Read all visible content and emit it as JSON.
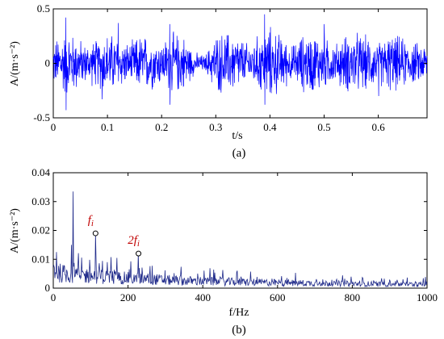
{
  "chart_data": [
    {
      "id": "a",
      "type": "line",
      "caption": "(a)",
      "xlabel": "t/s",
      "ylabel": "A/(m·s⁻²)",
      "xlim": [
        0,
        0.69
      ],
      "ylim": [
        -0.5,
        0.5
      ],
      "xticks": [
        0,
        0.1,
        0.2,
        0.3,
        0.4,
        0.5,
        0.6
      ],
      "xtick_labels": [
        "0",
        "0.1",
        "0.2",
        "0.3",
        "0.4",
        "0.5",
        "0.6"
      ],
      "yticks": [
        -0.5,
        0,
        0.5
      ],
      "ytick_labels": [
        "-0.5",
        "0",
        "0.5"
      ],
      "series_color": "#0000ff",
      "envelope": {
        "t": [
          0,
          0.02,
          0.04,
          0.06,
          0.08,
          0.1,
          0.12,
          0.14,
          0.16,
          0.18,
          0.2,
          0.22,
          0.24,
          0.26,
          0.28,
          0.3,
          0.32,
          0.34,
          0.36,
          0.38,
          0.4,
          0.42,
          0.44,
          0.46,
          0.48,
          0.5,
          0.52,
          0.54,
          0.56,
          0.58,
          0.6,
          0.62,
          0.64,
          0.66,
          0.69
        ],
        "amp": [
          0.22,
          0.35,
          0.3,
          0.2,
          0.25,
          0.32,
          0.28,
          0.2,
          0.3,
          0.28,
          0.22,
          0.32,
          0.3,
          0.12,
          0.08,
          0.3,
          0.33,
          0.3,
          0.2,
          0.3,
          0.38,
          0.3,
          0.18,
          0.3,
          0.32,
          0.28,
          0.2,
          0.3,
          0.32,
          0.28,
          0.22,
          0.3,
          0.28,
          0.22,
          0.2
        ]
      },
      "peaks": [
        {
          "t": 0.023,
          "v": 0.42
        },
        {
          "t": 0.023,
          "v": -0.43
        },
        {
          "t": 0.215,
          "v": 0.36
        },
        {
          "t": 0.215,
          "v": -0.38
        },
        {
          "t": 0.39,
          "v": 0.45
        },
        {
          "t": 0.39,
          "v": -0.38
        },
        {
          "t": 0.5,
          "v": 0.36
        },
        {
          "t": 0.12,
          "v": 0.37
        },
        {
          "t": 0.09,
          "v": -0.33
        },
        {
          "t": 0.6,
          "v": -0.3
        }
      ]
    },
    {
      "id": "b",
      "type": "line",
      "caption": "(b)",
      "xlabel": "f/Hz",
      "ylabel": "A/(m·s⁻²)",
      "xlim": [
        0,
        1000
      ],
      "ylim": [
        0,
        0.04
      ],
      "xticks": [
        0,
        200,
        400,
        600,
        800,
        1000
      ],
      "xtick_labels": [
        "0",
        "200",
        "400",
        "600",
        "800",
        "1000"
      ],
      "yticks": [
        0,
        0.01,
        0.02,
        0.03,
        0.04
      ],
      "ytick_labels": [
        "0",
        "0.01",
        "0.02",
        "0.03",
        "0.04"
      ],
      "series_color": "#1f2a8a",
      "baseline": {
        "f": [
          0,
          20,
          50,
          100,
          150,
          200,
          250,
          300,
          400,
          500,
          600,
          700,
          800,
          900,
          1000
        ],
        "level": [
          0.008,
          0.006,
          0.0055,
          0.005,
          0.0045,
          0.004,
          0.0038,
          0.0033,
          0.0028,
          0.0025,
          0.0022,
          0.002,
          0.0018,
          0.0016,
          0.0015
        ]
      },
      "peaks": [
        {
          "f": 53,
          "v": 0.0335
        },
        {
          "f": 113,
          "v": 0.019
        },
        {
          "f": 228,
          "v": 0.012
        },
        {
          "f": 48,
          "v": 0.015
        },
        {
          "f": 8,
          "v": 0.0125
        },
        {
          "f": 170,
          "v": 0.0105
        },
        {
          "f": 145,
          "v": 0.009
        }
      ],
      "annotations": [
        {
          "text": "f",
          "sub": "i",
          "f": 113,
          "v": 0.019
        },
        {
          "text": "2f",
          "sub": "i",
          "f": 228,
          "v": 0.012
        }
      ]
    }
  ]
}
